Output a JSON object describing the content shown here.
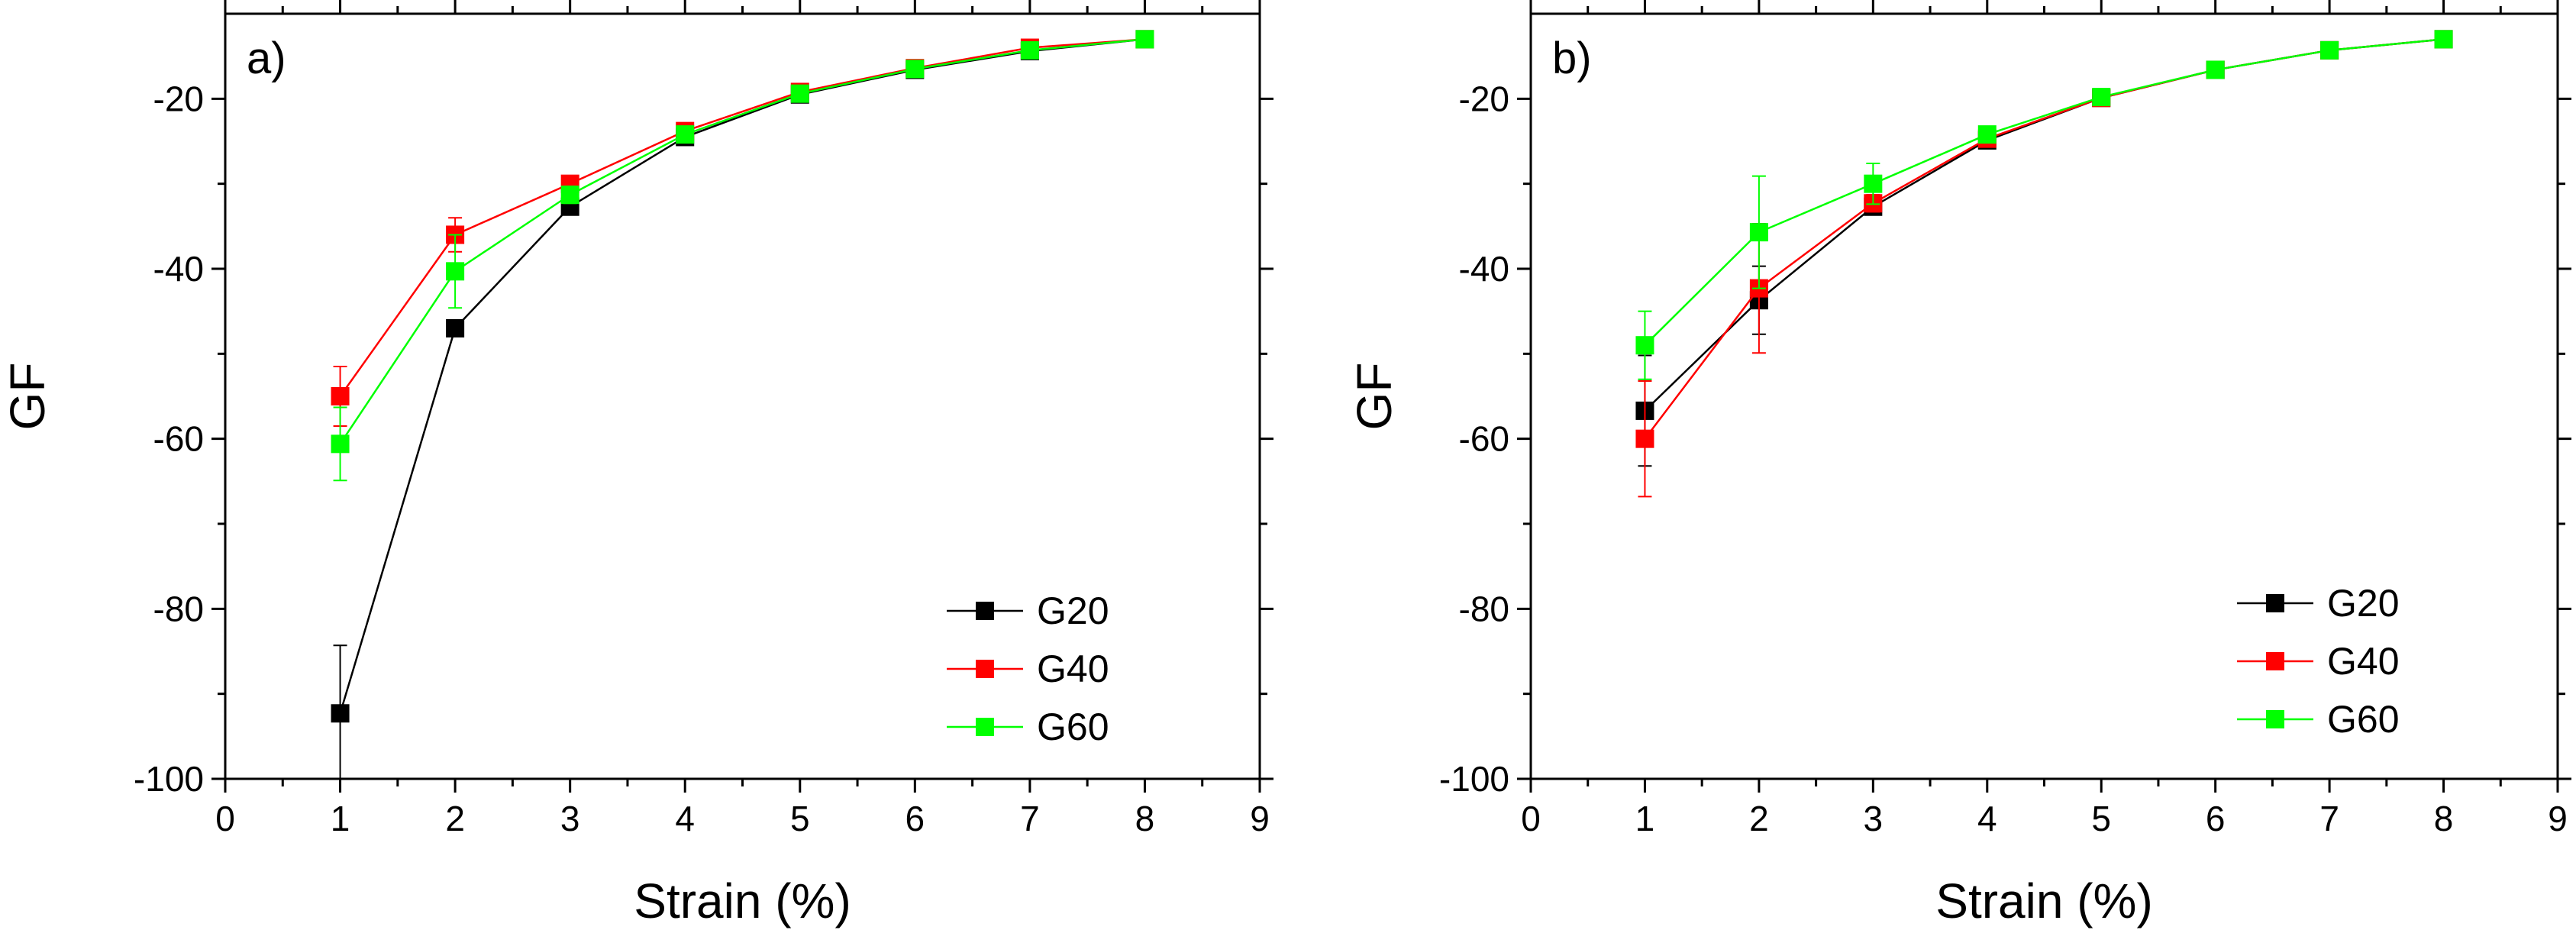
{
  "chart_data": [
    {
      "type": "line",
      "panel_label": "a)",
      "xlabel": "Strain (%)",
      "ylabel": "GF",
      "xlim": [
        0,
        9
      ],
      "ylim": [
        -100,
        -10
      ],
      "xticks": [
        0,
        1,
        2,
        3,
        4,
        5,
        6,
        7,
        8,
        9
      ],
      "yticks": [
        -100,
        -80,
        -60,
        -40,
        -20
      ],
      "x": [
        1,
        2,
        3,
        4,
        5,
        6,
        7,
        8
      ],
      "legend_position": "bottom-right",
      "series": [
        {
          "name": "G20",
          "color": "#000000",
          "values": [
            -92.3,
            -47,
            -32.7,
            -24.5,
            -19.5,
            -16.6,
            -14.4,
            -13
          ],
          "errors": [
            8,
            0.8,
            0.6,
            0.4,
            0.3,
            0.3,
            0.3,
            0.3
          ]
        },
        {
          "name": "G40",
          "color": "#ff0000",
          "values": [
            -55,
            -36,
            -30,
            -23.8,
            -19.2,
            -16.4,
            -14,
            -13
          ],
          "errors": [
            3.5,
            2,
            0.8,
            0.5,
            0.4,
            0.3,
            0.3,
            0.3
          ]
        },
        {
          "name": "G60",
          "color": "#00ff00",
          "values": [
            -60.6,
            -40.3,
            -31.3,
            -24.2,
            -19.4,
            -16.5,
            -14.3,
            -13
          ],
          "errors": [
            4.3,
            4.3,
            1,
            0.5,
            0.4,
            0.3,
            0.3,
            0.3
          ]
        }
      ]
    },
    {
      "type": "line",
      "panel_label": "b)",
      "xlabel": "Strain (%)",
      "ylabel": "GF",
      "xlim": [
        0,
        9
      ],
      "ylim": [
        -100,
        -10
      ],
      "xticks": [
        0,
        1,
        2,
        3,
        4,
        5,
        6,
        7,
        8,
        9
      ],
      "yticks": [
        -100,
        -80,
        -60,
        -40,
        -20
      ],
      "x": [
        1,
        2,
        3,
        4,
        5,
        6,
        7,
        8
      ],
      "legend_position": "bottom-right",
      "series": [
        {
          "name": "G20",
          "color": "#000000",
          "values": [
            -56.7,
            -43.7,
            -32.7,
            -24.9,
            -19.9,
            -16.6,
            -14.3,
            -13
          ],
          "errors": [
            6.5,
            4,
            0.8,
            0.5,
            0.3,
            0.3,
            0.3,
            0.3
          ]
        },
        {
          "name": "G40",
          "color": "#ff0000",
          "values": [
            -60,
            -42.3,
            -32.3,
            -24.7,
            -19.9,
            -16.6,
            -14.3,
            -13
          ],
          "errors": [
            6.8,
            7.6,
            1,
            0.5,
            0.3,
            0.3,
            0.3,
            0.3
          ]
        },
        {
          "name": "G60",
          "color": "#00ff00",
          "values": [
            -49,
            -35.7,
            -30,
            -24.2,
            -19.8,
            -16.6,
            -14.3,
            -13
          ],
          "errors": [
            4,
            6.6,
            2.4,
            0.6,
            0.3,
            0.3,
            0.3,
            0.3
          ]
        }
      ]
    }
  ]
}
